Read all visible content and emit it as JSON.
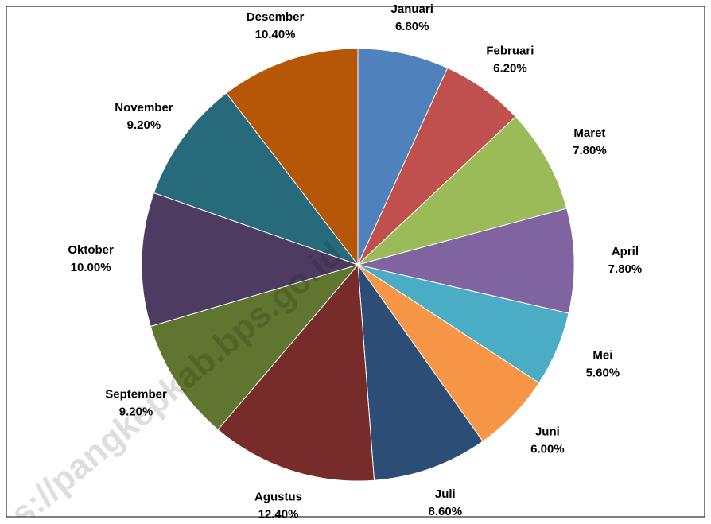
{
  "chart_data": {
    "type": "pie",
    "categories": [
      "Januari",
      "Februari",
      "Maret",
      "April",
      "Mei",
      "Juni",
      "Juli",
      "Agustus",
      "September",
      "Oktober",
      "November",
      "Desember"
    ],
    "values": [
      6.8,
      6.2,
      7.8,
      7.8,
      5.6,
      6.0,
      8.6,
      12.4,
      9.2,
      10.0,
      9.2,
      10.4
    ],
    "value_labels": [
      "6.80%",
      "6.20%",
      "7.80%",
      "7.80%",
      "5.60%",
      "6.00%",
      "8.60%",
      "12.40%",
      "9.20%",
      "10.00%",
      "9.20%",
      "10.40%"
    ],
    "colors": [
      "#4f81bd",
      "#c0504d",
      "#9bbb59",
      "#8064a2",
      "#4bacc6",
      "#f79646",
      "#2c4d75",
      "#772c2a",
      "#5f7530",
      "#4d3b62",
      "#276a7c",
      "#b65708"
    ],
    "watermark": "s://pangkepkab.bps.go.id"
  }
}
